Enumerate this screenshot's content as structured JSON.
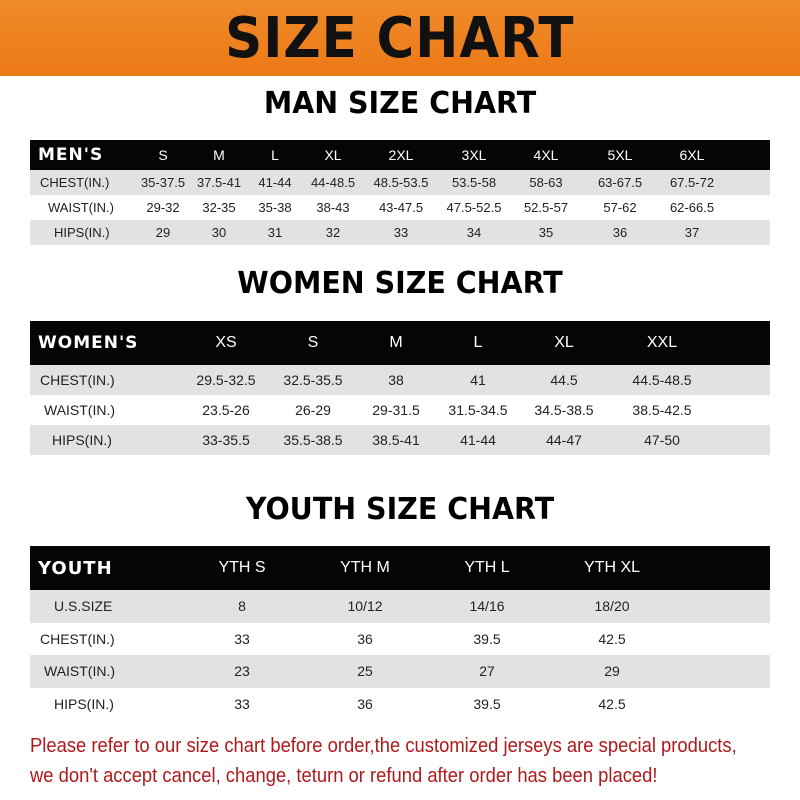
{
  "banner": {
    "title": "SIZE CHART",
    "color": "#ee7f1e"
  },
  "men": {
    "title": "MAN SIZE CHART",
    "header": [
      "MEN'S",
      "S",
      "M",
      "L",
      "XL",
      "2XL",
      "3XL",
      "4XL",
      "5XL",
      "6XL"
    ],
    "rows": [
      [
        "CHEST(IN.)",
        "35-37.5",
        "37.5-41",
        "41-44",
        "44-48.5",
        "48.5-53.5",
        "53.5-58",
        "58-63",
        "63-67.5",
        "67.5-72"
      ],
      [
        "WAIST(IN.)",
        "29-32",
        "32-35",
        "35-38",
        "38-43",
        "43-47.5",
        "47.5-52.5",
        "52.5-57",
        "57-62",
        "62-66.5"
      ],
      [
        "HIPS(IN.)",
        "29",
        "30",
        "31",
        "32",
        "33",
        "34",
        "35",
        "36",
        "37"
      ]
    ]
  },
  "women": {
    "title": "WOMEN SIZE CHART",
    "header": [
      "WOMEN'S",
      "XS",
      "S",
      "M",
      "L",
      "XL",
      "XXL"
    ],
    "rows": [
      [
        "CHEST(IN.)",
        "29.5-32.5",
        "32.5-35.5",
        "38",
        "41",
        "44.5",
        "44.5-48.5"
      ],
      [
        "WAIST(IN.)",
        "23.5-26",
        "26-29",
        "29-31.5",
        "31.5-34.5",
        "34.5-38.5",
        "38.5-42.5"
      ],
      [
        "HIPS(IN.)",
        "33-35.5",
        "35.5-38.5",
        "38.5-41",
        "41-44",
        "44-47",
        "47-50"
      ]
    ]
  },
  "youth": {
    "title": "YOUTH SIZE CHART",
    "header": [
      "YOUTH",
      "YTH S",
      "YTH M",
      "YTH L",
      "YTH XL"
    ],
    "rows": [
      [
        "U.S.SIZE",
        "8",
        "10/12",
        "14/16",
        "18/20"
      ],
      [
        "CHEST(IN.)",
        "33",
        "36",
        "39.5",
        "42.5"
      ],
      [
        "WAIST(IN.)",
        "23",
        "25",
        "27",
        "29"
      ],
      [
        "HIPS(IN.)",
        "33",
        "36",
        "39.5",
        "42.5"
      ]
    ]
  },
  "note": {
    "line1": "Please refer to our size chart before order,the customized jerseys are special products,",
    "line2": "we don't accept cancel, change, teturn or refund after order has been placed!",
    "color": "#b0191b"
  }
}
